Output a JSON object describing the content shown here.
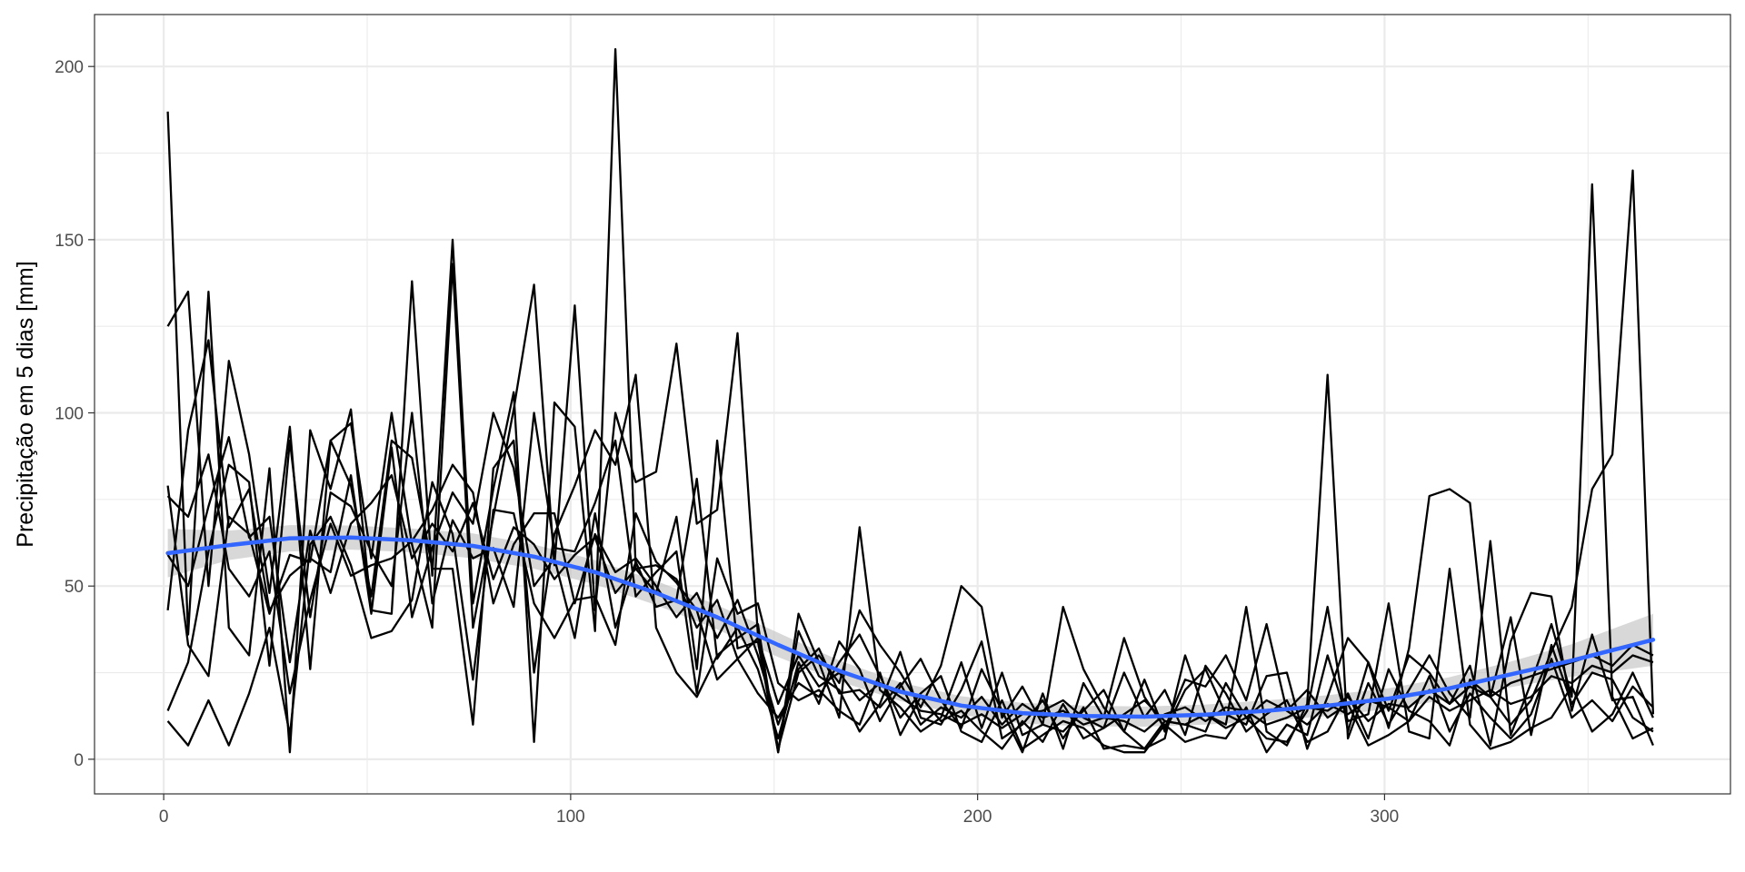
{
  "chart_data": {
    "type": "line",
    "title": "",
    "xlabel": "",
    "ylabel": "Precipitação em 5 dias [mm]",
    "xlim": [
      -17,
      385
    ],
    "ylim": [
      -10,
      215
    ],
    "x_ticks": [
      0,
      100,
      200,
      300
    ],
    "x_tick_labels": [
      "0",
      "100",
      "200",
      "300"
    ],
    "y_ticks": [
      0,
      50,
      100,
      150,
      200
    ],
    "y_tick_labels": [
      "0",
      "50",
      "100",
      "150",
      "200"
    ],
    "grid": true,
    "legend": "none",
    "line_color": "#000000",
    "smooth_color": "#3366FF",
    "band_color": "#BEBEBE",
    "x": [
      1,
      6,
      11,
      16,
      21,
      26,
      31,
      36,
      41,
      46,
      51,
      56,
      61,
      66,
      71,
      76,
      81,
      86,
      91,
      96,
      101,
      106,
      111,
      116,
      121,
      126,
      131,
      136,
      141,
      146,
      151,
      156,
      161,
      166,
      171,
      176,
      181,
      186,
      191,
      196,
      201,
      206,
      211,
      216,
      221,
      226,
      231,
      236,
      241,
      246,
      251,
      256,
      261,
      266,
      271,
      276,
      281,
      286,
      291,
      296,
      301,
      306,
      311,
      316,
      321,
      326,
      331,
      336,
      341,
      346,
      351,
      356,
      361,
      366
    ],
    "series": [
      {
        "values": [
          187,
          36,
          135,
          38,
          30,
          84,
          2,
          95,
          78,
          101,
          43,
          42,
          138,
          53,
          150,
          45,
          78,
          106,
          5,
          103,
          96,
          37,
          205,
          55,
          48,
          70,
          26,
          92,
          32,
          34,
          2,
          42,
          28,
          12,
          67,
          20,
          15,
          8,
          12,
          28,
          9,
          25,
          7,
          10,
          8,
          14,
          20,
          8,
          3,
          6,
          30,
          13,
          10,
          44,
          8,
          4,
          16,
          111,
          6,
          22,
          10,
          20,
          30,
          19,
          12,
          63,
          7,
          22,
          39,
          18,
          166,
          18,
          6,
          9
        ]
      },
      {
        "values": [
          125,
          135,
          50,
          115,
          88,
          48,
          96,
          26,
          92,
          97,
          58,
          100,
          62,
          38,
          143,
          38,
          70,
          101,
          137,
          56,
          131,
          43,
          100,
          80,
          83,
          120,
          68,
          72,
          123,
          36,
          3,
          25,
          30,
          22,
          43,
          33,
          25,
          15,
          27,
          50,
          44,
          12,
          21,
          10,
          44,
          26,
          15,
          8,
          23,
          8,
          20,
          26,
          13,
          10,
          24,
          25,
          3,
          18,
          35,
          28,
          9,
          32,
          76,
          78,
          74,
          18,
          10,
          17,
          31,
          44,
          78,
          88,
          170,
          13
        ]
      },
      {
        "values": [
          79,
          33,
          24,
          70,
          65,
          42,
          59,
          57,
          92,
          79,
          47,
          92,
          87,
          55,
          55,
          10,
          84,
          92,
          25,
          65,
          79,
          95,
          85,
          111,
          38,
          25,
          18,
          30,
          35,
          39,
          2,
          37,
          24,
          20,
          8,
          16,
          31,
          12,
          10,
          20,
          34,
          6,
          10,
          17,
          6,
          15,
          3,
          4,
          3,
          11,
          10,
          8,
          22,
          12,
          6,
          5,
          14,
          44,
          8,
          28,
          14,
          30,
          25,
          16,
          27,
          4,
          34,
          48,
          47,
          14,
          36,
          17,
          18,
          4
        ]
      },
      {
        "values": [
          43,
          95,
          121,
          67,
          78,
          43,
          53,
          58,
          54,
          82,
          42,
          90,
          41,
          61,
          77,
          68,
          100,
          84,
          50,
          58,
          35,
          71,
          38,
          57,
          44,
          46,
          81,
          29,
          38,
          26,
          6,
          28,
          16,
          34,
          26,
          11,
          21,
          29,
          17,
          9,
          26,
          14,
          2,
          19,
          3,
          22,
          12,
          35,
          18,
          9,
          23,
          21,
          30,
          17,
          39,
          14,
          20,
          12,
          16,
          4,
          7,
          11,
          24,
          8,
          19,
          12,
          6,
          13,
          29,
          12,
          17,
          11,
          21,
          15
        ]
      },
      {
        "values": [
          11,
          4,
          17,
          4,
          19,
          38,
          7,
          62,
          70,
          56,
          35,
          37,
          46,
          80,
          65,
          23,
          72,
          71,
          45,
          35,
          46,
          47,
          33,
          71,
          57,
          51,
          43,
          23,
          29,
          19,
          12,
          22,
          18,
          28,
          36,
          24,
          12,
          19,
          24,
          8,
          5,
          17,
          3,
          7,
          11,
          9,
          4,
          2,
          2,
          10,
          5,
          7,
          6,
          15,
          2,
          10,
          7,
          30,
          11,
          13,
          45,
          8,
          6,
          55,
          10,
          3,
          5,
          9,
          12,
          21,
          8,
          13,
          25,
          12
        ]
      },
      {
        "values": [
          14,
          28,
          60,
          85,
          80,
          27,
          92,
          41,
          77,
          73,
          60,
          50,
          100,
          45,
          69,
          58,
          61,
          44,
          100,
          61,
          60,
          74,
          92,
          47,
          54,
          60,
          19,
          58,
          42,
          45,
          22,
          17,
          20,
          14,
          10,
          25,
          7,
          18,
          11,
          14,
          8,
          3,
          11,
          5,
          16,
          6,
          9,
          25,
          12,
          20,
          7,
          27,
          19,
          8,
          13,
          17,
          5,
          8,
          19,
          6,
          26,
          14,
          11,
          4,
          23,
          18,
          41,
          7,
          33,
          16,
          25,
          23,
          12,
          8
        ]
      },
      {
        "values": [
          76,
          70,
          88,
          55,
          47,
          60,
          19,
          46,
          68,
          53,
          56,
          58,
          63,
          72,
          85,
          77,
          45,
          62,
          71,
          71,
          45,
          65,
          54,
          58,
          50,
          41,
          48,
          35,
          46,
          30,
          10,
          26,
          32,
          19,
          20,
          15,
          22,
          10,
          15,
          12,
          18,
          10,
          16,
          12,
          14,
          10,
          12,
          11,
          8,
          13,
          15,
          11,
          15,
          14,
          10,
          12,
          15,
          14,
          18,
          11,
          16,
          15,
          20,
          16,
          21,
          18,
          22,
          24,
          26,
          28,
          30,
          27,
          33,
          30
        ]
      },
      {
        "values": [
          59,
          50,
          73,
          93,
          64,
          70,
          28,
          66,
          48,
          68,
          74,
          82,
          58,
          68,
          60,
          74,
          52,
          67,
          62,
          52,
          59,
          64,
          48,
          55,
          56,
          52,
          38,
          46,
          29,
          35,
          16,
          30,
          21,
          25,
          17,
          22,
          18,
          14,
          13,
          10,
          13,
          9,
          13,
          14,
          17,
          12,
          9,
          13,
          17,
          11,
          10,
          13,
          9,
          12,
          17,
          14,
          10,
          16,
          13,
          17,
          15,
          11,
          18,
          14,
          17,
          20,
          16,
          18,
          24,
          22,
          27,
          25,
          30,
          28
        ]
      }
    ],
    "smooth": {
      "x": [
        1,
        16,
        31,
        46,
        61,
        76,
        91,
        106,
        121,
        136,
        151,
        166,
        181,
        196,
        211,
        226,
        241,
        256,
        271,
        286,
        301,
        316,
        331,
        346,
        366
      ],
      "y": [
        59.5,
        61.8,
        63.8,
        64.0,
        63.2,
        61.6,
        58.5,
        54.0,
        48.0,
        41.0,
        33.0,
        25.5,
        19.5,
        15.5,
        13.3,
        12.5,
        12.3,
        12.9,
        14.0,
        15.5,
        17.5,
        20.5,
        24.5,
        28.5,
        34.5
      ],
      "lower": [
        52.5,
        57.5,
        60.0,
        60.5,
        59.8,
        58.0,
        55.0,
        50.5,
        44.5,
        37.5,
        29.5,
        22.5,
        16.8,
        12.8,
        10.3,
        9.5,
        9.4,
        10.0,
        11.0,
        12.5,
        14.5,
        17.3,
        20.8,
        23.8,
        27.0
      ],
      "upper": [
        66.5,
        66.0,
        67.6,
        67.5,
        66.6,
        65.2,
        62.0,
        57.5,
        51.5,
        44.5,
        36.5,
        28.5,
        22.2,
        18.2,
        16.3,
        15.5,
        15.2,
        15.8,
        17.0,
        18.5,
        20.5,
        23.7,
        28.2,
        33.2,
        42.0
      ]
    }
  }
}
